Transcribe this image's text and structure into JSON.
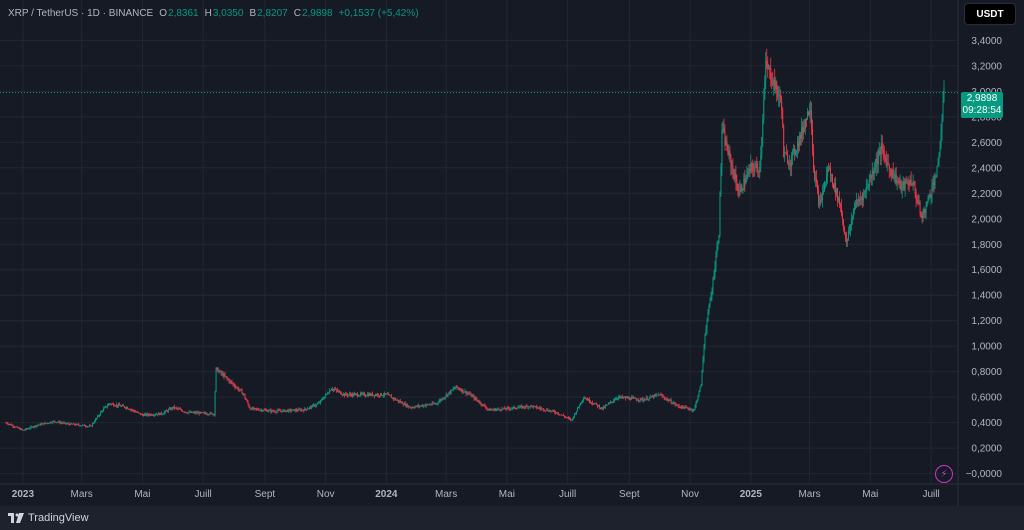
{
  "header": {
    "symbol": "XRP / TetherUS · 1D · BINANCE",
    "open_label": "O",
    "open": "2,8361",
    "high_label": "H",
    "high": "3,0350",
    "low_label": "B",
    "low": "2,8207",
    "close_label": "C",
    "close": "2,9898",
    "change": "+0,1537 (+5,42%)"
  },
  "currency_button": "USDT",
  "price_tag": {
    "price": "2,9898",
    "countdown": "09:28:54"
  },
  "footer": {
    "brand": "TradingView"
  },
  "colors": {
    "up": "#089981",
    "down": "#f23645",
    "background": "#161a25",
    "grid": "#232733",
    "axis_text": "#b2b5be"
  },
  "chart_data": {
    "type": "candlestick",
    "title": "XRP / TetherUS · 1D · BINANCE",
    "x_axis": {
      "start": "2022-12-15",
      "end": "2025-07-14",
      "labels": [
        {
          "date": "2023-01-01",
          "text": "2023",
          "bold": true
        },
        {
          "date": "2023-03-01",
          "text": "Mars"
        },
        {
          "date": "2023-05-01",
          "text": "Mai"
        },
        {
          "date": "2023-07-01",
          "text": "Juill"
        },
        {
          "date": "2023-09-01",
          "text": "Sept"
        },
        {
          "date": "2023-11-01",
          "text": "Nov"
        },
        {
          "date": "2024-01-01",
          "text": "2024",
          "bold": true
        },
        {
          "date": "2024-03-01",
          "text": "Mars"
        },
        {
          "date": "2024-05-01",
          "text": "Mai"
        },
        {
          "date": "2024-07-01",
          "text": "Juill"
        },
        {
          "date": "2024-09-01",
          "text": "Sept"
        },
        {
          "date": "2024-11-01",
          "text": "Nov"
        },
        {
          "date": "2025-01-01",
          "text": "2025",
          "bold": true
        },
        {
          "date": "2025-03-01",
          "text": "Mars"
        },
        {
          "date": "2025-05-01",
          "text": "Mai"
        },
        {
          "date": "2025-07-01",
          "text": "Juill"
        }
      ]
    },
    "y_axis": {
      "min": -0.05,
      "max": 3.45,
      "ticks": [
        0,
        0.2,
        0.4,
        0.6,
        0.8,
        1.0,
        1.2,
        1.4,
        1.6,
        1.8,
        2.0,
        2.2,
        2.4,
        2.6,
        2.8,
        3.0,
        3.2,
        3.4
      ],
      "tick_labels": [
        "−0,0000",
        "0,2000",
        "0,4000",
        "0,6000",
        "0,8000",
        "1,0000",
        "1,2000",
        "1,4000",
        "1,6000",
        "1,8000",
        "2,0000",
        "2,2000",
        "2,4000",
        "2,6000",
        "2,8000",
        "3,0000",
        "3,2000",
        "3,4000"
      ]
    },
    "last_price": 2.9898,
    "grid": true,
    "price_path": [
      [
        "2022-12-15",
        0.4
      ],
      [
        "2023-01-01",
        0.34
      ],
      [
        "2023-01-15",
        0.38
      ],
      [
        "2023-02-01",
        0.41
      ],
      [
        "2023-02-15",
        0.39
      ],
      [
        "2023-03-01",
        0.38
      ],
      [
        "2023-03-10",
        0.37
      ],
      [
        "2023-03-22",
        0.5
      ],
      [
        "2023-03-29",
        0.55
      ],
      [
        "2023-04-15",
        0.52
      ],
      [
        "2023-05-01",
        0.46
      ],
      [
        "2023-05-20",
        0.47
      ],
      [
        "2023-06-01",
        0.52
      ],
      [
        "2023-06-15",
        0.48
      ],
      [
        "2023-07-12",
        0.47
      ],
      [
        "2023-07-14",
        0.82
      ],
      [
        "2023-07-20",
        0.78
      ],
      [
        "2023-08-10",
        0.63
      ],
      [
        "2023-08-17",
        0.51
      ],
      [
        "2023-09-10",
        0.49
      ],
      [
        "2023-10-10",
        0.5
      ],
      [
        "2023-10-25",
        0.55
      ],
      [
        "2023-11-07",
        0.67
      ],
      [
        "2023-11-20",
        0.62
      ],
      [
        "2023-12-10",
        0.62
      ],
      [
        "2024-01-01",
        0.62
      ],
      [
        "2024-01-25",
        0.52
      ],
      [
        "2024-02-20",
        0.55
      ],
      [
        "2024-03-11",
        0.68
      ],
      [
        "2024-03-25",
        0.62
      ],
      [
        "2024-04-13",
        0.5
      ],
      [
        "2024-05-01",
        0.51
      ],
      [
        "2024-05-25",
        0.53
      ],
      [
        "2024-06-20",
        0.48
      ],
      [
        "2024-07-05",
        0.42
      ],
      [
        "2024-07-17",
        0.6
      ],
      [
        "2024-08-05",
        0.51
      ],
      [
        "2024-08-20",
        0.6
      ],
      [
        "2024-09-15",
        0.58
      ],
      [
        "2024-10-01",
        0.62
      ],
      [
        "2024-10-20",
        0.53
      ],
      [
        "2024-11-05",
        0.5
      ],
      [
        "2024-11-12",
        0.7
      ],
      [
        "2024-11-16",
        1.1
      ],
      [
        "2024-11-23",
        1.45
      ],
      [
        "2024-11-30",
        1.9
      ],
      [
        "2024-12-03",
        2.7
      ],
      [
        "2024-12-08",
        2.55
      ],
      [
        "2024-12-15",
        2.35
      ],
      [
        "2024-12-20",
        2.2
      ],
      [
        "2025-01-01",
        2.4
      ],
      [
        "2025-01-10",
        2.4
      ],
      [
        "2025-01-16",
        3.2
      ],
      [
        "2025-01-20",
        3.15
      ],
      [
        "2025-01-25",
        3.05
      ],
      [
        "2025-02-01",
        2.9
      ],
      [
        "2025-02-03",
        2.5
      ],
      [
        "2025-02-10",
        2.45
      ],
      [
        "2025-02-20",
        2.65
      ],
      [
        "2025-03-02",
        2.9
      ],
      [
        "2025-03-05",
        2.4
      ],
      [
        "2025-03-11",
        2.1
      ],
      [
        "2025-03-20",
        2.4
      ],
      [
        "2025-04-01",
        2.1
      ],
      [
        "2025-04-07",
        1.8
      ],
      [
        "2025-04-15",
        2.1
      ],
      [
        "2025-04-25",
        2.2
      ],
      [
        "2025-05-12",
        2.55
      ],
      [
        "2025-05-20",
        2.4
      ],
      [
        "2025-06-01",
        2.25
      ],
      [
        "2025-06-12",
        2.3
      ],
      [
        "2025-06-22",
        2.0
      ],
      [
        "2025-07-02",
        2.25
      ],
      [
        "2025-07-08",
        2.4
      ],
      [
        "2025-07-14",
        2.99
      ]
    ]
  }
}
